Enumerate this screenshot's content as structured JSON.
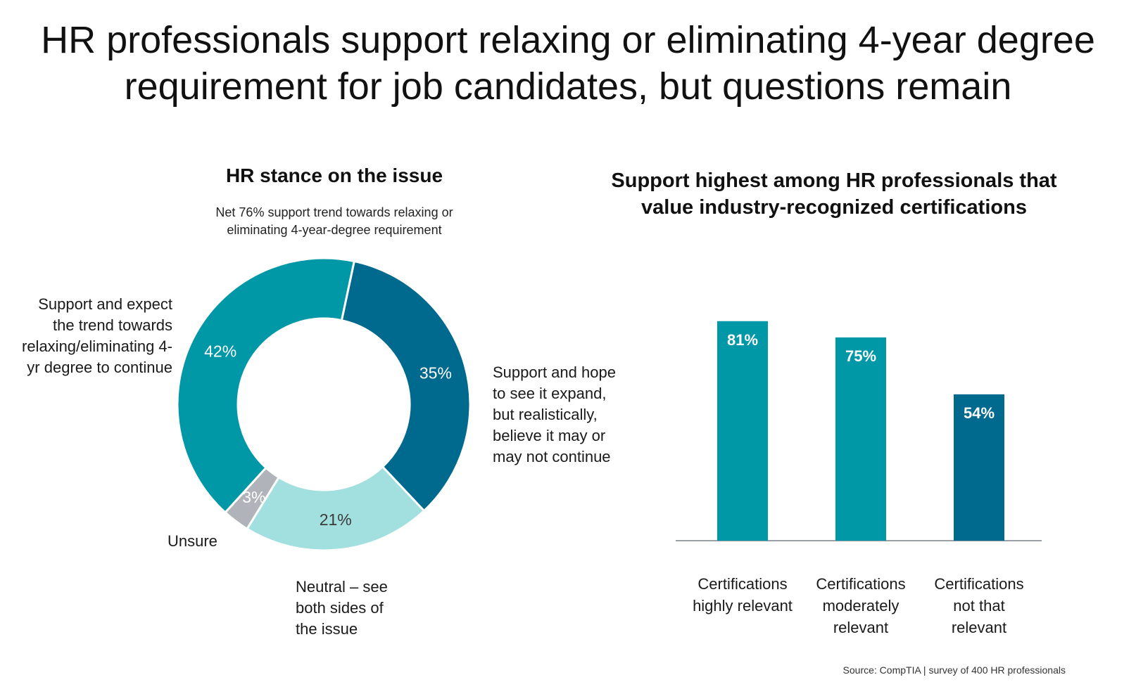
{
  "title": {
    "line1": "HR professionals support relaxing or eliminating 4-year degree",
    "line2": "requirement for job candidates, but questions remain"
  },
  "source": "Source: CompTIA | survey of 400 HR professionals",
  "colors": {
    "teal": "#0097A7",
    "dark_teal": "#006A8E",
    "light_teal": "#A2E0DF",
    "gray": "#B0B4BA"
  },
  "chart_data": [
    {
      "type": "pie",
      "title": "HR stance on the issue",
      "subtitle_line1": "Net 76% support trend towards relaxing or",
      "subtitle_line2": "eliminating 4-year-degree requirement",
      "slices": [
        {
          "key": "hope",
          "value": 35,
          "label": "35%",
          "color": "#006A8E",
          "label_color": "#ffffff",
          "legend_lines": [
            "Support and hope",
            "to see it expand,",
            "but realistically,",
            "believe it may or",
            "may not continue"
          ]
        },
        {
          "key": "neutral",
          "value": 21,
          "label": "21%",
          "color": "#A2E0DF",
          "label_color": "#3a3a3a",
          "legend_lines": [
            "Neutral – see",
            "both sides of",
            "the issue"
          ]
        },
        {
          "key": "unsure",
          "value": 3,
          "label": "3%",
          "color": "#B0B4BA",
          "label_color": "#ffffff",
          "legend_lines": [
            "Unsure"
          ]
        },
        {
          "key": "support",
          "value": 42,
          "label": "42%",
          "color": "#0097A7",
          "label_color": "#ffffff",
          "legend_lines": [
            "Support and expect",
            "the trend towards",
            "relaxing/eliminating 4-",
            "yr degree to continue"
          ]
        }
      ]
    },
    {
      "type": "bar",
      "title_line1": "Support highest among HR professionals that",
      "title_line2": "value industry-recognized certifications",
      "ylim": [
        0,
        100
      ],
      "bars": [
        {
          "value": 81,
          "label": "81%",
          "color": "#0097A7",
          "category_lines": [
            "Certifications",
            "highly relevant"
          ]
        },
        {
          "value": 75,
          "label": "75%",
          "color": "#0097A7",
          "category_lines": [
            "Certifications",
            "moderately",
            "relevant"
          ]
        },
        {
          "value": 54,
          "label": "54%",
          "color": "#006A8E",
          "category_lines": [
            "Certifications",
            "not that",
            "relevant"
          ]
        }
      ]
    }
  ]
}
